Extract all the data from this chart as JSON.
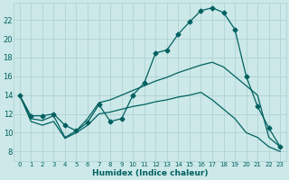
{
  "xlabel": "Humidex (Indice chaleur)",
  "bg_color": "#cce8e8",
  "grid_color": "#aacfcf",
  "line_color": "#006060",
  "xlim": [
    -0.5,
    23.5
  ],
  "ylim": [
    7.0,
    23.8
  ],
  "yticks": [
    8,
    10,
    12,
    14,
    16,
    18,
    20,
    22
  ],
  "xticks": [
    0,
    1,
    2,
    3,
    4,
    5,
    6,
    7,
    8,
    9,
    10,
    11,
    12,
    13,
    14,
    15,
    16,
    17,
    18,
    19,
    20,
    21,
    22,
    23
  ],
  "curve1_x": [
    0,
    1,
    2,
    3,
    4,
    5,
    6,
    7,
    8,
    9,
    10,
    11,
    12,
    13,
    14,
    15,
    16,
    17,
    18,
    19,
    20,
    21,
    22,
    23
  ],
  "curve1_y": [
    14.0,
    11.8,
    11.8,
    12.0,
    10.8,
    10.2,
    11.1,
    13.0,
    11.2,
    11.5,
    14.0,
    15.3,
    18.5,
    18.8,
    20.5,
    21.8,
    23.0,
    23.3,
    22.8,
    21.0,
    16.0,
    12.8,
    10.5,
    8.5
  ],
  "curve2_x": [
    0,
    1,
    2,
    3,
    4,
    5,
    6,
    7,
    8,
    9,
    10,
    11,
    12,
    13,
    14,
    15,
    16,
    17,
    18,
    19,
    20,
    21,
    22,
    23
  ],
  "curve2_y": [
    14.0,
    11.5,
    11.3,
    11.8,
    9.5,
    10.2,
    11.5,
    13.2,
    13.5,
    14.0,
    14.5,
    15.0,
    15.5,
    15.9,
    16.4,
    16.8,
    17.2,
    17.5,
    17.0,
    16.0,
    15.0,
    14.0,
    9.5,
    8.5
  ],
  "curve3_x": [
    0,
    1,
    2,
    3,
    4,
    5,
    6,
    7,
    8,
    9,
    10,
    11,
    12,
    13,
    14,
    15,
    16,
    17,
    18,
    19,
    20,
    21,
    22,
    23
  ],
  "curve3_y": [
    14.0,
    11.2,
    10.8,
    11.2,
    9.4,
    10.0,
    10.8,
    12.0,
    12.2,
    12.5,
    12.8,
    13.0,
    13.3,
    13.5,
    13.8,
    14.0,
    14.3,
    13.5,
    12.5,
    11.5,
    10.0,
    9.5,
    8.5,
    8.0
  ],
  "marker": "D",
  "markersize": 2.5,
  "linewidth": 0.9
}
